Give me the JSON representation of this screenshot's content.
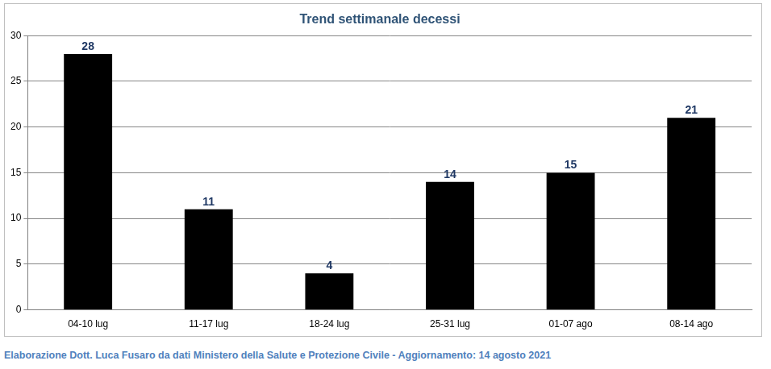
{
  "chart_data": {
    "type": "bar",
    "title": "Trend settimanale decessi",
    "categories": [
      "04-10 lug",
      "11-17 lug",
      "18-24 lug",
      "25-31 lug",
      "01-07 ago",
      "08-14 ago"
    ],
    "values": [
      28,
      11,
      4,
      14,
      15,
      21
    ],
    "color": "#000000",
    "ylim": [
      0,
      30
    ],
    "yticks": [
      0,
      5,
      10,
      15,
      20,
      25,
      30
    ],
    "grid": true,
    "data_labels": true,
    "source": "Elaborazione Dott. Luca Fusaro da dati Ministero della Salute e Protezione Civile - Aggiornamento: 14 agosto 2021"
  }
}
